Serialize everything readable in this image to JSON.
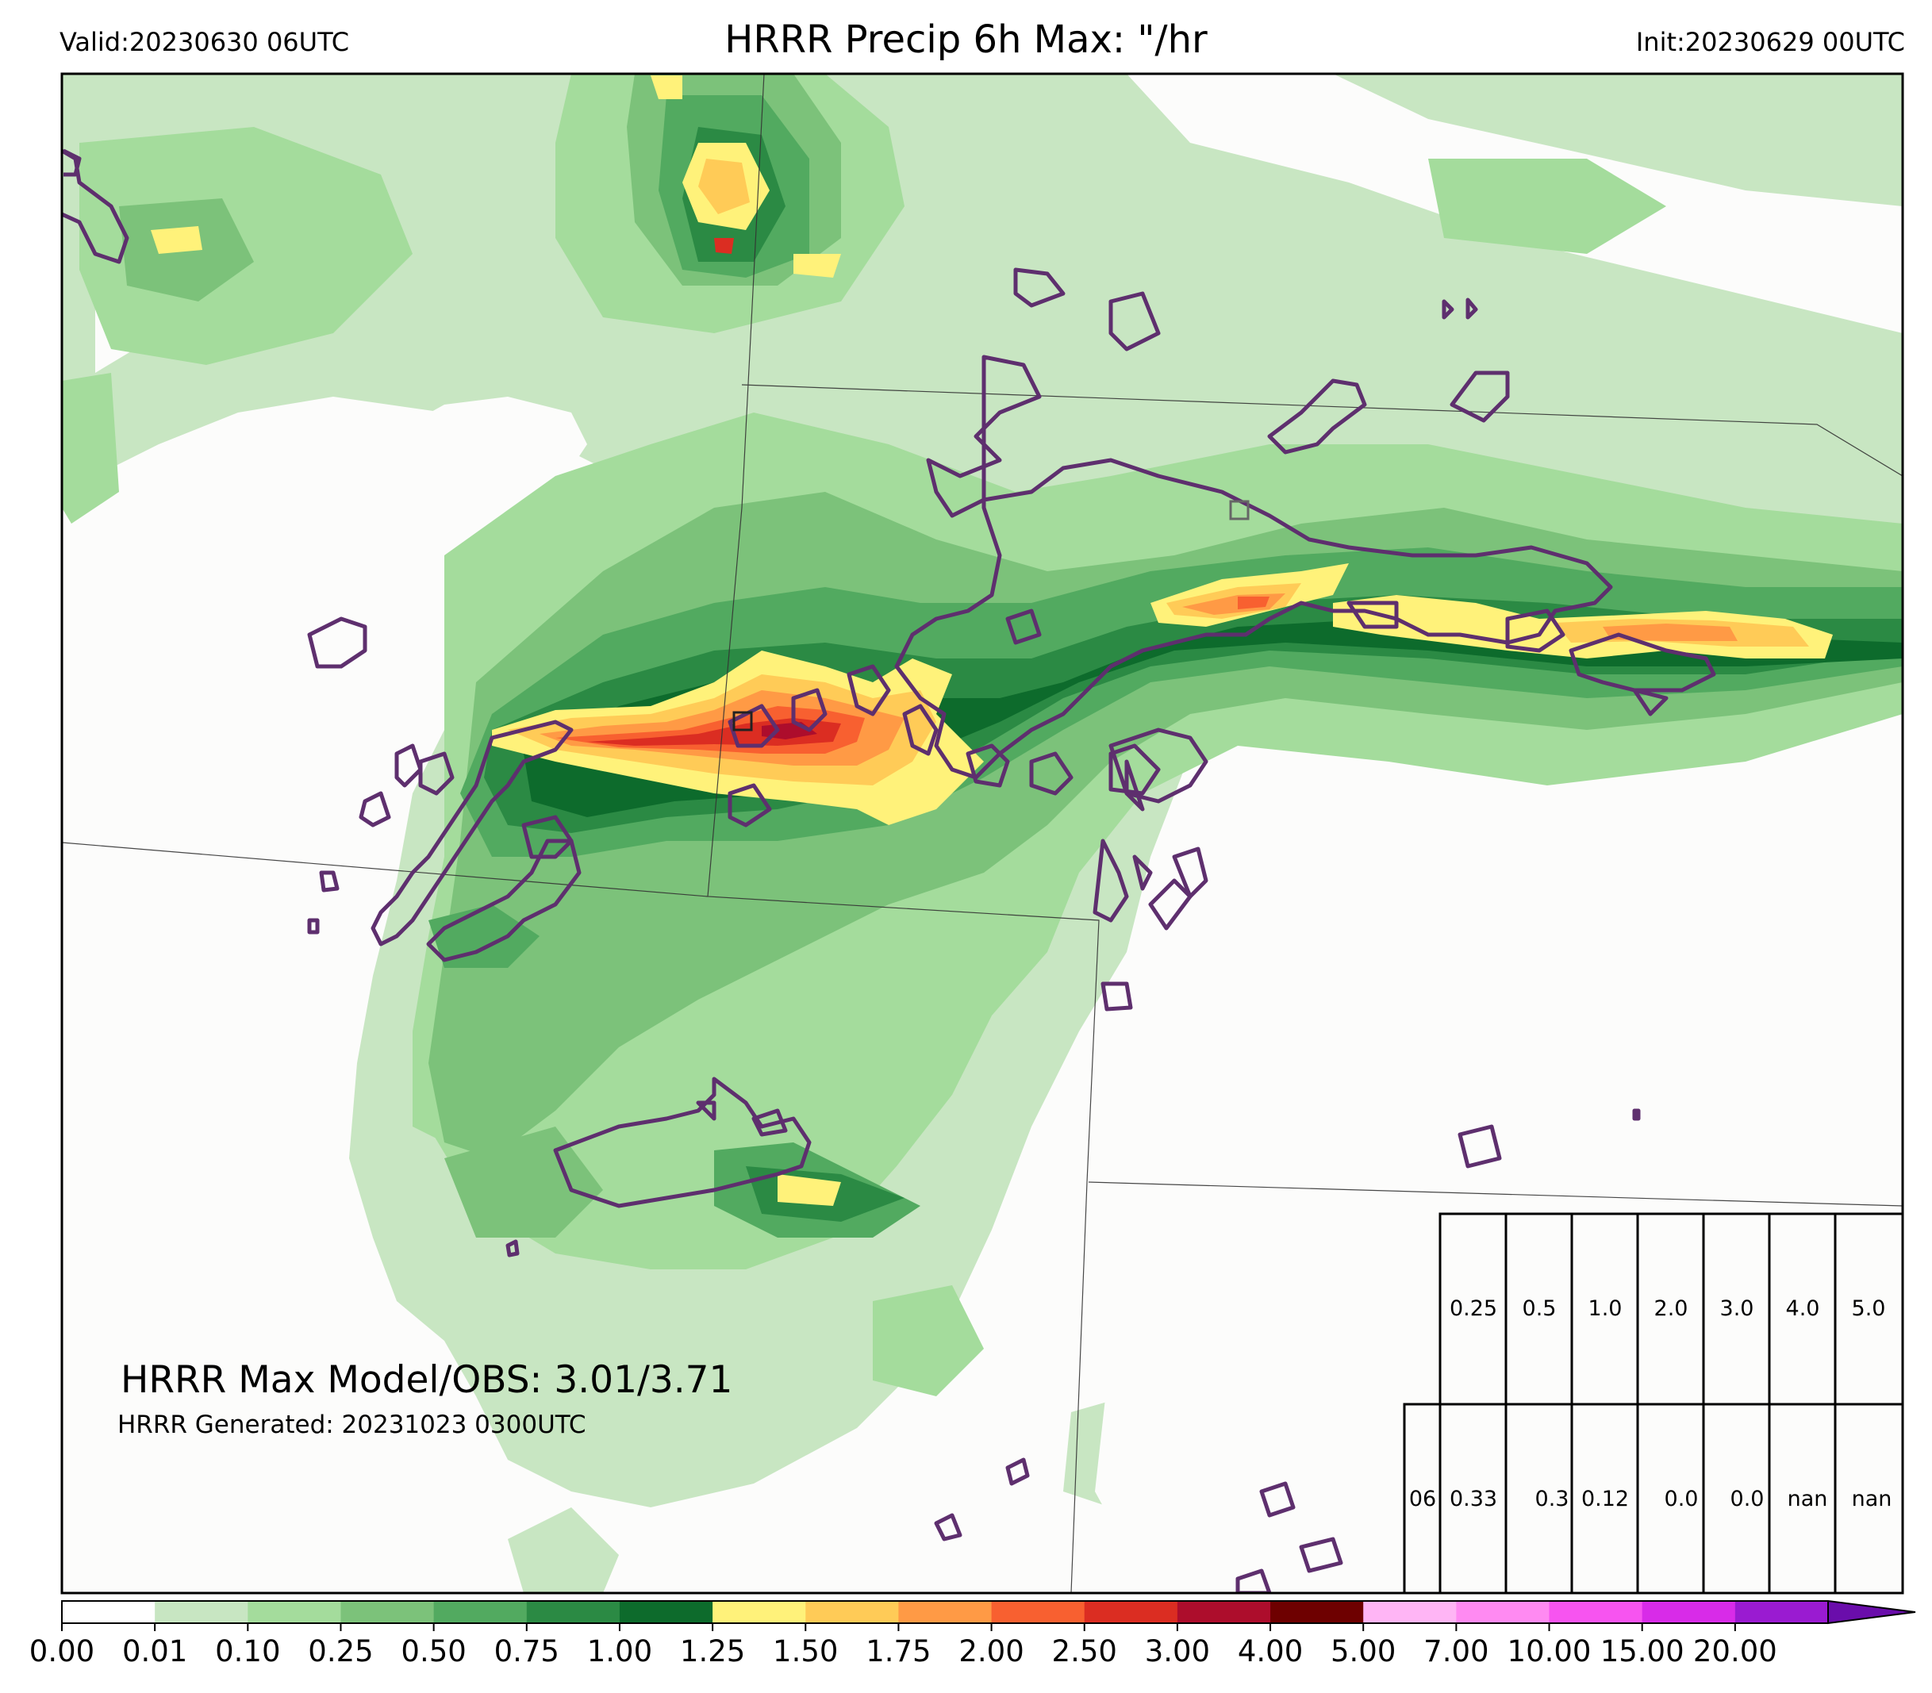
{
  "header": {
    "valid": "Valid:20230630 06UTC",
    "title": "HRRR Precip 6h Max: \"/hr",
    "init": "Init:20230629 00UTC"
  },
  "stats": {
    "max_line": "HRRR Max Model/OBS: 3.01/3.71",
    "generated": "HRRR Generated: 20231023 0300UTC"
  },
  "table": {
    "thresholds": [
      "0.25",
      "0.5",
      "1.0",
      "2.0",
      "3.0",
      "4.0",
      "5.0"
    ],
    "row_label": "06",
    "values": [
      "0.33",
      "0.3",
      "0.12",
      "0.0",
      "0.0",
      "nan",
      "nan"
    ]
  },
  "colorbar": {
    "ticks": [
      "0.00",
      "0.01",
      "0.10",
      "0.25",
      "0.50",
      "0.75",
      "1.00",
      "1.25",
      "1.50",
      "1.75",
      "2.00",
      "2.50",
      "3.00",
      "4.00",
      "5.00",
      "7.00",
      "10.00",
      "15.00",
      "20.00"
    ],
    "colors": [
      "#ffffff",
      "#c8e6c2",
      "#a4dc9c",
      "#7cc27a",
      "#52aa60",
      "#2b8a44",
      "#0d6b2c",
      "#fff27a",
      "#ffcb57",
      "#ff9a45",
      "#f86030",
      "#db2d22",
      "#ad0d2c",
      "#6e0000",
      "#ffb5f5",
      "#ff8af2",
      "#f754f0",
      "#d82be8",
      "#9a1bd1"
    ],
    "extend_color": "#6a0dab"
  },
  "map": {
    "background": "#fcfcfb",
    "contour_color": "#5e2f6e"
  }
}
